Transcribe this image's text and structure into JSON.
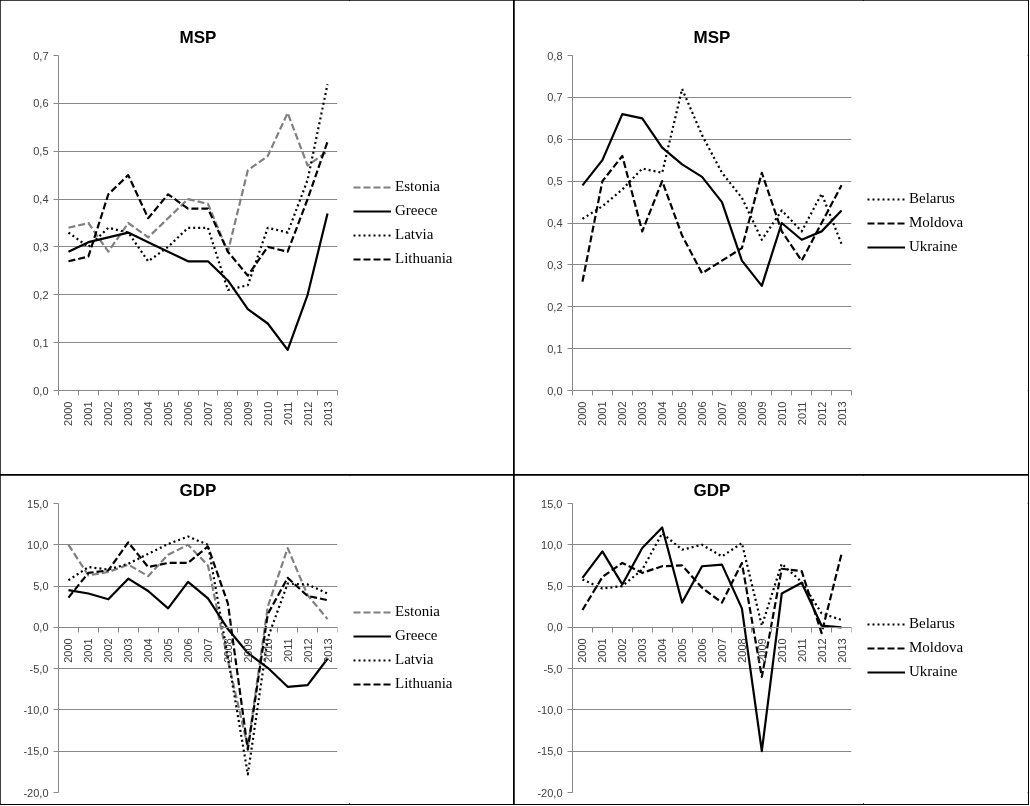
{
  "chart_data": [
    {
      "type": "line",
      "title": "MSP",
      "categories": [
        "2000",
        "2001",
        "2002",
        "2003",
        "2004",
        "2005",
        "2006",
        "2007",
        "2008",
        "2009",
        "2010",
        "2011",
        "2012",
        "2013"
      ],
      "series": [
        {
          "name": "Estonia",
          "color": "#808080",
          "line_style": "dashed",
          "values": [
            0.34,
            0.35,
            0.29,
            0.35,
            0.32,
            0.36,
            0.4,
            0.39,
            0.29,
            0.46,
            0.49,
            0.58,
            0.47,
            0.5
          ]
        },
        {
          "name": "Greece",
          "color": "#000000",
          "line_style": "solid",
          "values": [
            0.29,
            0.31,
            0.32,
            0.33,
            0.31,
            0.29,
            0.27,
            0.27,
            0.23,
            0.17,
            0.14,
            0.085,
            0.2,
            0.37
          ]
        },
        {
          "name": "Latvia",
          "color": "#000000",
          "line_style": "dotted",
          "values": [
            0.33,
            0.3,
            0.34,
            0.33,
            0.27,
            0.3,
            0.34,
            0.34,
            0.21,
            0.22,
            0.34,
            0.33,
            0.44,
            0.64
          ]
        },
        {
          "name": "Lithuania",
          "color": "#000000",
          "line_style": "dashed",
          "values": [
            0.27,
            0.28,
            0.41,
            0.45,
            0.36,
            0.41,
            0.38,
            0.38,
            0.29,
            0.24,
            0.3,
            0.29,
            0.4,
            0.52
          ]
        }
      ],
      "ylim": [
        0,
        0.7
      ],
      "yticks": [
        {
          "value": 0,
          "label": "0,0"
        },
        {
          "value": 0.1,
          "label": "0,1"
        },
        {
          "value": 0.2,
          "label": "0,2"
        },
        {
          "value": 0.3,
          "label": "0,3"
        },
        {
          "value": 0.4,
          "label": "0,4"
        },
        {
          "value": 0.5,
          "label": "0,5"
        },
        {
          "value": 0.6,
          "label": "0,6"
        },
        {
          "value": 0.7,
          "label": "0,7"
        }
      ],
      "grid": "y",
      "legend": "right"
    },
    {
      "type": "line",
      "title": "MSP",
      "categories": [
        "2000",
        "2001",
        "2002",
        "2003",
        "2004",
        "2005",
        "2006",
        "2007",
        "2008",
        "2009",
        "2010",
        "2011",
        "2012",
        "2013"
      ],
      "series": [
        {
          "name": "Belarus",
          "color": "#000000",
          "line_style": "dotted",
          "values": [
            0.41,
            0.44,
            0.48,
            0.53,
            0.52,
            0.72,
            0.61,
            0.52,
            0.46,
            0.36,
            0.43,
            0.38,
            0.47,
            0.35
          ]
        },
        {
          "name": "Moldova",
          "color": "#000000",
          "line_style": "dashed",
          "values": [
            0.26,
            0.5,
            0.56,
            0.38,
            0.5,
            0.37,
            0.28,
            0.31,
            0.34,
            0.52,
            0.38,
            0.31,
            0.4,
            0.49
          ]
        },
        {
          "name": "Ukraine",
          "color": "#000000",
          "line_style": "solid",
          "values": [
            0.49,
            0.55,
            0.66,
            0.65,
            0.58,
            0.54,
            0.51,
            0.45,
            0.31,
            0.25,
            0.4,
            0.36,
            0.38,
            0.43
          ]
        }
      ],
      "ylim": [
        0,
        0.8
      ],
      "yticks": [
        {
          "value": 0,
          "label": "0,0"
        },
        {
          "value": 0.1,
          "label": "0,1"
        },
        {
          "value": 0.2,
          "label": "0,2"
        },
        {
          "value": 0.3,
          "label": "0,3"
        },
        {
          "value": 0.4,
          "label": "0,4"
        },
        {
          "value": 0.5,
          "label": "0,5"
        },
        {
          "value": 0.6,
          "label": "0,6"
        },
        {
          "value": 0.7,
          "label": "0,7"
        },
        {
          "value": 0.8,
          "label": "0,8"
        }
      ],
      "grid": "y",
      "legend": "right"
    },
    {
      "type": "line",
      "title": "GDP",
      "categories": [
        "2000",
        "2001",
        "2002",
        "2003",
        "2004",
        "2005",
        "2006",
        "2007",
        "2008",
        "2009",
        "2010",
        "2011",
        "2012",
        "2013"
      ],
      "series": [
        {
          "name": "Estonia",
          "color": "#808080",
          "line_style": "dashed",
          "values": [
            10.0,
            6.3,
            6.7,
            7.6,
            6.2,
            8.8,
            10.0,
            7.5,
            -4.0,
            -14.5,
            2.5,
            9.6,
            3.9,
            1.0
          ]
        },
        {
          "name": "Greece",
          "color": "#000000",
          "line_style": "solid",
          "values": [
            4.5,
            4.1,
            3.4,
            5.9,
            4.4,
            2.3,
            5.5,
            3.5,
            -0.2,
            -3.1,
            -4.9,
            -7.2,
            -7.0,
            -3.8
          ]
        },
        {
          "name": "Latvia",
          "color": "#000000",
          "line_style": "dotted",
          "values": [
            5.7,
            7.3,
            7.0,
            7.7,
            8.9,
            10.1,
            11.0,
            10.0,
            -3.6,
            -17.8,
            -1.3,
            5.3,
            5.2,
            4.1
          ]
        },
        {
          "name": "Lithuania",
          "color": "#000000",
          "line_style": "dashed",
          "values": [
            3.6,
            6.6,
            6.9,
            10.3,
            7.3,
            7.8,
            7.8,
            9.8,
            2.9,
            -14.8,
            1.6,
            6.0,
            3.8,
            3.3
          ]
        }
      ],
      "ylim": [
        -20,
        15
      ],
      "yticks": [
        {
          "value": -20,
          "label": "-20,0"
        },
        {
          "value": -15,
          "label": "-15,0"
        },
        {
          "value": -10,
          "label": "-10,0"
        },
        {
          "value": -5,
          "label": "-5,0"
        },
        {
          "value": 0,
          "label": "0,0"
        },
        {
          "value": 5,
          "label": "5,0"
        },
        {
          "value": 10,
          "label": "10,0"
        },
        {
          "value": 15,
          "label": "15,0"
        }
      ],
      "grid": "y",
      "legend": "right"
    },
    {
      "type": "line",
      "title": "GDP",
      "categories": [
        "2000",
        "2001",
        "2002",
        "2003",
        "2004",
        "2005",
        "2006",
        "2007",
        "2008",
        "2009",
        "2010",
        "2011",
        "2012",
        "2013"
      ],
      "series": [
        {
          "name": "Belarus",
          "color": "#000000",
          "line_style": "dotted",
          "values": [
            5.8,
            4.7,
            5.0,
            7.0,
            11.4,
            9.4,
            10.0,
            8.6,
            10.2,
            0.2,
            7.7,
            5.5,
            1.7,
            0.9
          ]
        },
        {
          "name": "Moldova",
          "color": "#000000",
          "line_style": "dashed",
          "values": [
            2.1,
            6.1,
            7.8,
            6.6,
            7.4,
            7.5,
            4.8,
            3.0,
            7.8,
            -6.0,
            7.1,
            6.8,
            -0.7,
            8.9
          ]
        },
        {
          "name": "Ukraine",
          "color": "#000000",
          "line_style": "solid",
          "values": [
            6.0,
            9.2,
            5.2,
            9.6,
            12.1,
            3.0,
            7.4,
            7.6,
            2.3,
            -15.0,
            4.1,
            5.4,
            0.2,
            0.0
          ]
        }
      ],
      "ylim": [
        -20,
        15
      ],
      "yticks": [
        {
          "value": -20,
          "label": "-20,0"
        },
        {
          "value": -15,
          "label": "-15,0"
        },
        {
          "value": -10,
          "label": "-10,0"
        },
        {
          "value": -5,
          "label": "-5,0"
        },
        {
          "value": 0,
          "label": "0,0"
        },
        {
          "value": 5,
          "label": "5,0"
        },
        {
          "value": 10,
          "label": "10,0"
        },
        {
          "value": 15,
          "label": "15,0"
        }
      ],
      "grid": "y",
      "legend": "right"
    }
  ]
}
